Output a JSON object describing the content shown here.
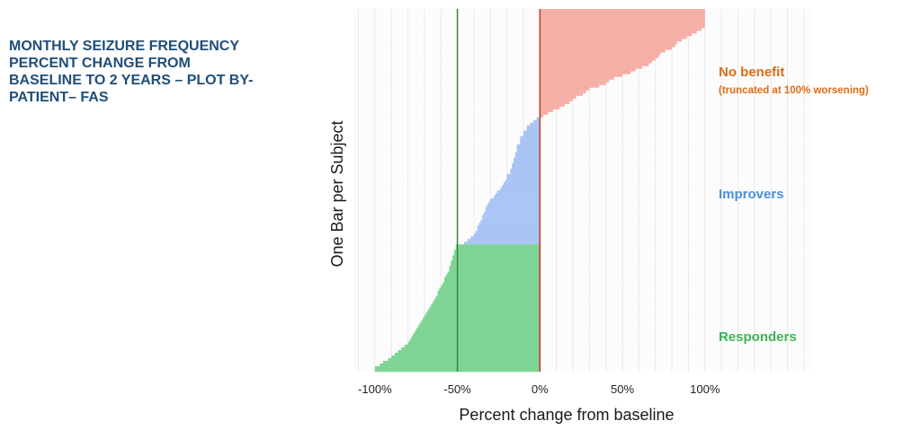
{
  "title_lines": [
    "MONTHLY SEIZURE FREQUENCY",
    "PERCENT CHANGE FROM",
    "BASELINE TO 2 YEARS – PLOT BY-",
    "PATIENT– FAS"
  ],
  "colors": {
    "no_benefit": "#f4b0a6",
    "improvers": "#aac5f5",
    "responders": "#7fd495",
    "responder_line": "#2e8b3c",
    "zero_line": "#c0392b",
    "no_benefit_text": "#e06b14",
    "improvers_text": "#4a90d9",
    "responders_text": "#3cb554",
    "title": "#1f4e79"
  },
  "chart_data": {
    "type": "bar",
    "orientation": "horizontal",
    "xlabel": "Percent change from baseline",
    "ylabel": "One Bar per Subject",
    "xlim": [
      -113,
      165
    ],
    "x_ticks": [
      -100,
      -50,
      0,
      50,
      100
    ],
    "x_tick_labels": [
      "-100%",
      "-50%",
      "0%",
      "50%",
      "100%"
    ],
    "grid": true,
    "reference_lines": [
      {
        "name": "responder-threshold",
        "x": -50
      },
      {
        "name": "no-change",
        "x": 0
      }
    ],
    "annotations": {
      "no_benefit": "No benefit",
      "no_benefit_note": "(truncated at 100% worsening)",
      "improvers": "Improvers",
      "responders": "Responders"
    },
    "subject_count": 134,
    "series": [
      {
        "name": "No benefit",
        "values": [
          100,
          100,
          100,
          100,
          100,
          100,
          100,
          98,
          95,
          92,
          89,
          86,
          83,
          82,
          80,
          76,
          73,
          72,
          70,
          68,
          66,
          62,
          58,
          55,
          50,
          45,
          42,
          40,
          36,
          30,
          28,
          26,
          22,
          20,
          18,
          15,
          12,
          8,
          5,
          2
        ]
      },
      {
        "name": "Improvers",
        "values": [
          -2,
          -4,
          -6,
          -8,
          -8,
          -10,
          -10,
          -12,
          -12,
          -12,
          -14,
          -14,
          -14,
          -15,
          -15,
          -16,
          -16,
          -17,
          -17,
          -18,
          -18,
          -20,
          -20,
          -21,
          -22,
          -23,
          -24,
          -26,
          -27,
          -28,
          -30,
          -31,
          -32,
          -33,
          -33,
          -34,
          -35,
          -35,
          -36,
          -37,
          -38,
          -38,
          -39,
          -40,
          -42,
          -44,
          -46
        ]
      },
      {
        "name": "Responders",
        "values": [
          -51,
          -51,
          -52,
          -52,
          -53,
          -53,
          -54,
          -54,
          -55,
          -55,
          -56,
          -57,
          -58,
          -58,
          -59,
          -60,
          -61,
          -62,
          -62,
          -63,
          -64,
          -65,
          -66,
          -67,
          -68,
          -69,
          -70,
          -71,
          -72,
          -73,
          -74,
          -75,
          -76,
          -77,
          -78,
          -79,
          -80,
          -82,
          -84,
          -86,
          -88,
          -90,
          -92,
          -95,
          -97,
          -100,
          -100
        ]
      }
    ]
  }
}
